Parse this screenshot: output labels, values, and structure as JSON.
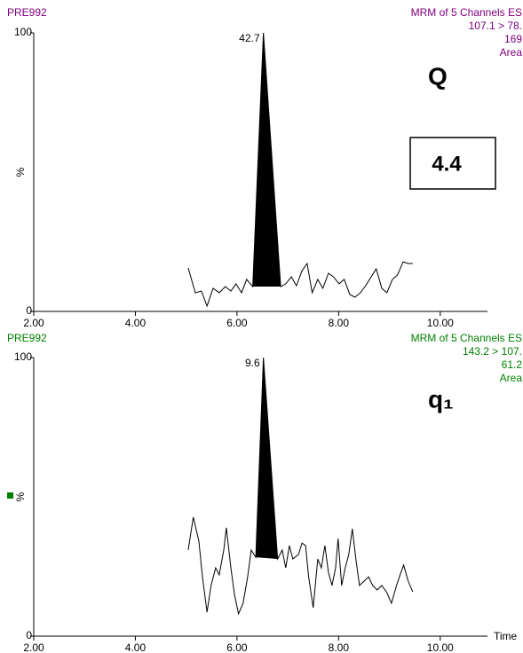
{
  "chart_data": [
    {
      "type": "line",
      "title": "PRE992",
      "header_color": "#800080",
      "channel_info": [
        "MRM of 5 Channels ES",
        "107.1 > 78.",
        "169",
        "Area"
      ],
      "annotation": "Q",
      "ratio_box": 4.4,
      "peak_label": 42.7,
      "ylabel": "%",
      "x": [
        5.04,
        5.18,
        5.3,
        5.41,
        5.53,
        5.65,
        5.77,
        5.88,
        5.98,
        6.09,
        6.19,
        6.31,
        6.52,
        6.86,
        6.96,
        7.07,
        7.17,
        7.28,
        7.38,
        7.48,
        7.59,
        7.69,
        7.8,
        7.9,
        8.01,
        8.11,
        8.22,
        8.32,
        8.43,
        8.53,
        8.64,
        8.74,
        8.85,
        8.95,
        9.06,
        9.16,
        9.27,
        9.37,
        9.46
      ],
      "values": [
        15.6,
        6.7,
        7.3,
        1.9,
        8.3,
        6.7,
        8.9,
        7.3,
        9.9,
        6.7,
        11.5,
        8.9,
        100,
        8.9,
        9.9,
        12.4,
        9.2,
        14.6,
        17.2,
        6.7,
        11.5,
        8.3,
        13.7,
        12.4,
        9.9,
        11.5,
        6.1,
        5.1,
        6.7,
        9.2,
        12.4,
        15.3,
        8.3,
        6.7,
        11.5,
        13.1,
        17.8,
        17.2,
        17.2
      ],
      "color": "#000000",
      "xlim": [
        2,
        10.93
      ],
      "ylim": [
        0,
        100
      ],
      "xticks": [
        {
          "value": 2,
          "label": "2.00"
        },
        {
          "value": 4,
          "label": "4.00"
        },
        {
          "value": 6,
          "label": "6.00"
        },
        {
          "value": 8,
          "label": "8.00"
        },
        {
          "value": 10,
          "label": "10.00"
        }
      ],
      "yticks": [
        0,
        100
      ]
    },
    {
      "type": "line",
      "title": "PRE992",
      "header_color": "#008000",
      "channel_info": [
        "MRM of 5 Channels ES",
        "143.2 > 107.",
        "61.2",
        "Area"
      ],
      "annotation": "q₁",
      "peak_label": 9.6,
      "ylabel": "%",
      "xlabel": "Time",
      "x": [
        5.04,
        5.14,
        5.25,
        5.32,
        5.41,
        5.49,
        5.58,
        5.65,
        5.74,
        5.79,
        5.88,
        5.95,
        6.03,
        6.12,
        6.21,
        6.28,
        6.37,
        6.52,
        6.8,
        6.89,
        6.96,
        7.03,
        7.1,
        7.21,
        7.28,
        7.35,
        7.41,
        7.5,
        7.59,
        7.66,
        7.73,
        7.8,
        7.87,
        7.94,
        7.99,
        8.06,
        8.13,
        8.2,
        8.27,
        8.34,
        8.41,
        8.5,
        8.59,
        8.67,
        8.76,
        8.85,
        8.95,
        9.04,
        9.14,
        9.21,
        9.28,
        9.37,
        9.46
      ],
      "values": [
        30.9,
        42.7,
        34.1,
        21.3,
        8.6,
        18.2,
        24.5,
        22.0,
        30.9,
        38.9,
        24.5,
        15.0,
        8.0,
        11.8,
        21.3,
        30.9,
        28.3,
        100,
        27.7,
        30.9,
        24.5,
        32.5,
        27.7,
        29.3,
        33.4,
        32.5,
        21.3,
        10.2,
        27.7,
        24.5,
        32.5,
        22.9,
        18.2,
        24.5,
        35.0,
        18.2,
        24.5,
        29.3,
        38.5,
        27.7,
        18.2,
        19.7,
        21.3,
        18.2,
        16.6,
        18.2,
        15.6,
        11.8,
        18.2,
        22.0,
        25.5,
        19.7,
        15.9
      ],
      "color": "#000000",
      "xlim": [
        2,
        10.93
      ],
      "ylim": [
        0,
        100
      ],
      "xticks": [
        {
          "value": 2,
          "label": "2.00"
        },
        {
          "value": 4,
          "label": "4.00"
        },
        {
          "value": 6,
          "label": "6.00"
        },
        {
          "value": 8,
          "label": "8.00"
        },
        {
          "value": 10,
          "label": "10.00"
        }
      ],
      "yticks": [
        0,
        100
      ]
    }
  ]
}
